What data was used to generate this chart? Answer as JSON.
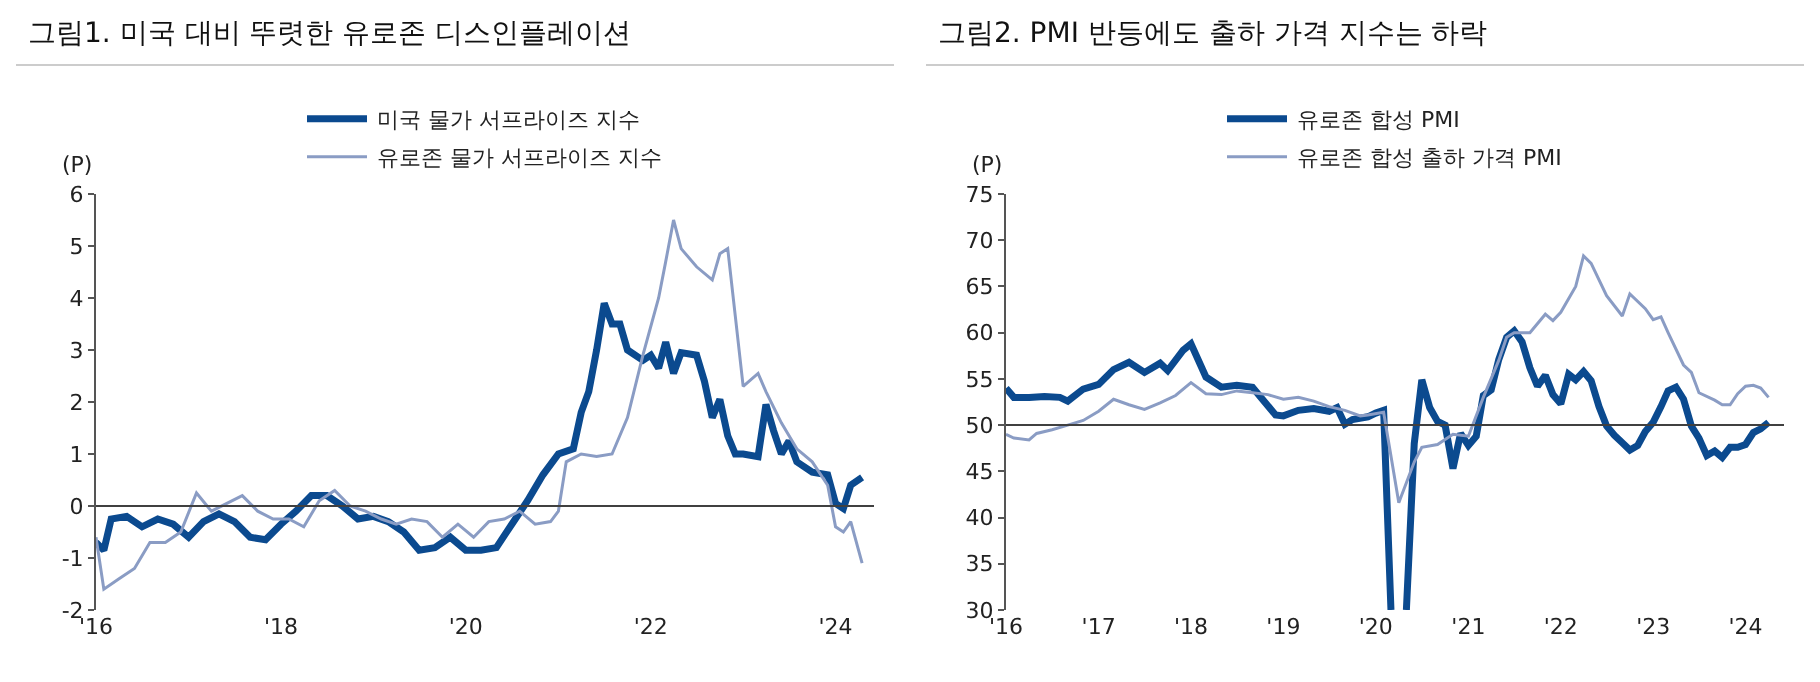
{
  "chart_data": [
    {
      "type": "line",
      "title": "그림1. 미국 대비 뚜렷한 유로존 디스인플레이션",
      "ylabel": "(P)",
      "legend": "top",
      "grid": false,
      "xlim": [
        "2016-01-01",
        "2024-06-01"
      ],
      "xticks": [
        {
          "value": "2016-01-01",
          "label": "'16"
        },
        {
          "value": "2018-01-01",
          "label": "'18"
        },
        {
          "value": "2020-01-01",
          "label": "'20"
        },
        {
          "value": "2022-01-01",
          "label": "'22"
        },
        {
          "value": "2024-01-01",
          "label": "'24"
        }
      ],
      "ylim": [
        -2,
        6
      ],
      "yticks": [
        -2,
        -1,
        0,
        1,
        2,
        3,
        4,
        5,
        6
      ],
      "ref_lines": [
        {
          "axis": "y",
          "value": 0,
          "color": "#404040"
        }
      ],
      "series": [
        {
          "name": "미국 물가 서프라이즈 지수",
          "color": "#0b4a8f",
          "x": [
            "2016-01",
            "2016-02",
            "2016-03",
            "2016-05",
            "2016-07",
            "2016-09",
            "2016-11",
            "2017-01",
            "2017-03",
            "2017-05",
            "2017-07",
            "2017-09",
            "2017-11",
            "2018-01",
            "2018-03",
            "2018-05",
            "2018-07",
            "2018-09",
            "2018-11",
            "2019-01",
            "2019-03",
            "2019-05",
            "2019-07",
            "2019-09",
            "2019-11",
            "2020-01",
            "2020-03",
            "2020-05",
            "2020-07",
            "2020-09",
            "2020-11",
            "2021-01",
            "2021-03",
            "2021-04",
            "2021-05",
            "2021-06",
            "2021-07",
            "2021-08",
            "2021-09",
            "2021-10",
            "2021-12",
            "2022-01",
            "2022-02",
            "2022-03",
            "2022-04",
            "2022-05",
            "2022-07",
            "2022-08",
            "2022-09",
            "2022-10",
            "2022-11",
            "2022-12",
            "2023-01",
            "2023-03",
            "2023-04",
            "2023-05",
            "2023-06",
            "2023-07",
            "2023-08",
            "2023-10",
            "2023-12",
            "2024-01",
            "2024-02",
            "2024-03",
            "2024-04-15"
          ],
          "values": [
            -0.7,
            -0.85,
            -0.25,
            -0.2,
            -0.4,
            -0.25,
            -0.35,
            -0.6,
            -0.3,
            -0.15,
            -0.3,
            -0.6,
            -0.65,
            -0.35,
            -0.1,
            0.2,
            0.2,
            0.0,
            -0.25,
            -0.2,
            -0.3,
            -0.5,
            -0.85,
            -0.8,
            -0.6,
            -0.85,
            -0.85,
            -0.8,
            -0.35,
            0.1,
            0.6,
            1.0,
            1.1,
            1.8,
            2.2,
            3.0,
            3.9,
            3.5,
            3.5,
            3.0,
            2.8,
            2.9,
            2.65,
            3.15,
            2.55,
            2.95,
            2.9,
            2.4,
            1.7,
            2.05,
            1.35,
            1.0,
            1.0,
            0.95,
            1.95,
            1.45,
            1.0,
            1.25,
            0.85,
            0.65,
            0.6,
            0.05,
            -0.05,
            0.4,
            0.55
          ]
        },
        {
          "name": "유로존 물가 서프라이즈 지수",
          "color": "#8a9cc4",
          "x": [
            "2016-01",
            "2016-02",
            "2016-04",
            "2016-06",
            "2016-08",
            "2016-10",
            "2016-12",
            "2017-02",
            "2017-04",
            "2017-06",
            "2017-08",
            "2017-10",
            "2017-12",
            "2018-02",
            "2018-04",
            "2018-06",
            "2018-08",
            "2018-10",
            "2018-12",
            "2019-02",
            "2019-04",
            "2019-06",
            "2019-08",
            "2019-10",
            "2019-12",
            "2020-02",
            "2020-04",
            "2020-06",
            "2020-08",
            "2020-10",
            "2020-12",
            "2021-01",
            "2021-02",
            "2021-04",
            "2021-06",
            "2021-08",
            "2021-10",
            "2021-12",
            "2022-02",
            "2022-03",
            "2022-04",
            "2022-05",
            "2022-07",
            "2022-09",
            "2022-10",
            "2022-11",
            "2022-12",
            "2023-01",
            "2023-03",
            "2023-04",
            "2023-06",
            "2023-08",
            "2023-10",
            "2023-12",
            "2024-01",
            "2024-02",
            "2024-03",
            "2024-04-15"
          ],
          "values": [
            -0.6,
            -1.6,
            -1.4,
            -1.2,
            -0.7,
            -0.7,
            -0.5,
            0.25,
            -0.1,
            0.05,
            0.2,
            -0.1,
            -0.25,
            -0.25,
            -0.4,
            0.1,
            0.3,
            0.0,
            -0.1,
            -0.25,
            -0.35,
            -0.25,
            -0.3,
            -0.6,
            -0.35,
            -0.6,
            -0.3,
            -0.25,
            -0.1,
            -0.35,
            -0.3,
            -0.1,
            0.85,
            1.0,
            0.95,
            1.0,
            1.7,
            2.9,
            4.0,
            4.7,
            5.5,
            4.95,
            4.6,
            4.35,
            4.85,
            4.95,
            3.65,
            2.3,
            2.55,
            2.2,
            1.6,
            1.1,
            0.85,
            0.4,
            -0.4,
            -0.5,
            -0.3,
            -1.1
          ]
        }
      ]
    },
    {
      "type": "line",
      "title": "그림2. PMI 반등에도 출하 가격 지수는 하락",
      "ylabel": "(P)",
      "legend": "top",
      "grid": false,
      "xlim": [
        "2016-01-01",
        "2024-06-01"
      ],
      "xticks": [
        {
          "value": "2016-01-01",
          "label": "'16"
        },
        {
          "value": "2017-01-01",
          "label": "'17"
        },
        {
          "value": "2018-01-01",
          "label": "'18"
        },
        {
          "value": "2019-01-01",
          "label": "'19"
        },
        {
          "value": "2020-01-01",
          "label": "'20"
        },
        {
          "value": "2021-01-01",
          "label": "'21"
        },
        {
          "value": "2022-01-01",
          "label": "'22"
        },
        {
          "value": "2023-01-01",
          "label": "'23"
        },
        {
          "value": "2024-01-01",
          "label": "'24"
        }
      ],
      "ylim": [
        30,
        75
      ],
      "yticks": [
        30,
        35,
        40,
        45,
        50,
        55,
        60,
        65,
        70,
        75
      ],
      "ref_lines": [
        {
          "axis": "y",
          "value": 50,
          "color": "#404040"
        }
      ],
      "series": [
        {
          "name": "유로존 합성 PMI",
          "color": "#0b4a8f",
          "x": [
            "2016-01",
            "2016-02",
            "2016-04",
            "2016-06",
            "2016-08",
            "2016-09",
            "2016-11",
            "2017-01",
            "2017-03",
            "2017-05",
            "2017-07",
            "2017-09",
            "2017-10",
            "2017-12",
            "2018-01",
            "2018-03",
            "2018-05",
            "2018-07",
            "2018-09",
            "2018-10",
            "2018-12",
            "2019-01",
            "2019-03",
            "2019-05",
            "2019-07",
            "2019-08",
            "2019-09",
            "2019-10",
            "2019-12",
            "2020-01",
            "2020-02",
            "2020-03",
            "2020-04",
            "2020-05",
            "2020-06",
            "2020-07",
            "2020-08",
            "2020-09",
            "2020-10",
            "2020-11",
            "2020-12",
            "2021-01",
            "2021-02",
            "2021-03",
            "2021-04",
            "2021-05",
            "2021-06",
            "2021-07",
            "2021-08",
            "2021-09",
            "2021-10",
            "2021-11",
            "2021-12",
            "2022-01",
            "2022-02",
            "2022-03",
            "2022-04",
            "2022-05",
            "2022-06",
            "2022-07",
            "2022-08",
            "2022-09",
            "2022-10",
            "2022-11",
            "2022-12",
            "2023-01",
            "2023-02",
            "2023-03",
            "2023-04",
            "2023-05",
            "2023-06",
            "2023-07",
            "2023-08",
            "2023-09",
            "2023-10",
            "2023-11",
            "2023-12",
            "2024-01",
            "2024-02",
            "2024-03",
            "2024-04"
          ],
          "values": [
            54,
            53,
            53,
            53.1,
            53,
            52.6,
            53.9,
            54.4,
            56,
            56.8,
            55.7,
            56.7,
            55.9,
            58.1,
            58.8,
            55.2,
            54.1,
            54.3,
            54.1,
            53.1,
            51.1,
            51,
            51.6,
            51.8,
            51.5,
            51.9,
            50.1,
            50.6,
            50.9,
            51.3,
            51.6,
            30,
            null,
            30,
            48,
            54.9,
            51.9,
            50.4,
            50,
            45.3,
            49.1,
            47.8,
            48.8,
            53.2,
            53.8,
            57.1,
            59.5,
            60.2,
            59,
            56.2,
            54.2,
            55.4,
            53.3,
            52.3,
            55.5,
            54.9,
            55.8,
            54.8,
            52,
            49.9,
            48.9,
            48.1,
            47.3,
            47.8,
            49.3,
            50.3,
            52,
            53.7,
            54.1,
            52.8,
            49.9,
            48.6,
            46.7,
            47.2,
            46.5,
            47.6,
            47.6,
            47.9,
            49.2,
            49.6,
            50.3
          ]
        },
        {
          "name": "유로존 합성 출하 가격 PMI",
          "color": "#8a9cc4",
          "x": [
            "2016-01",
            "2016-02",
            "2016-04",
            "2016-05",
            "2016-07",
            "2016-09",
            "2016-11",
            "2017-01",
            "2017-03",
            "2017-05",
            "2017-07",
            "2017-09",
            "2017-11",
            "2018-01",
            "2018-03",
            "2018-05",
            "2018-07",
            "2018-09",
            "2018-11",
            "2019-01",
            "2019-03",
            "2019-05",
            "2019-07",
            "2019-09",
            "2019-11",
            "2019-12",
            "2020-02",
            "2020-04",
            "2020-06",
            "2020-07",
            "2020-09",
            "2020-11",
            "2021-01",
            "2021-03",
            "2021-05",
            "2021-06",
            "2021-07",
            "2021-09",
            "2021-11",
            "2021-12",
            "2022-01",
            "2022-03",
            "2022-04",
            "2022-05",
            "2022-07",
            "2022-09",
            "2022-10",
            "2022-12",
            "2023-01",
            "2023-02",
            "2023-03",
            "2023-05",
            "2023-06",
            "2023-07",
            "2023-09",
            "2023-10",
            "2023-11",
            "2023-12",
            "2024-01",
            "2024-02",
            "2024-03",
            "2024-04"
          ],
          "values": [
            49,
            48.6,
            48.4,
            49.1,
            49.5,
            50,
            50.5,
            51.5,
            52.8,
            52.2,
            51.7,
            52.4,
            53.2,
            54.6,
            53.4,
            53.3,
            53.7,
            53.5,
            53.3,
            52.8,
            53,
            52.6,
            52,
            51.6,
            51,
            51.1,
            51.4,
            41.6,
            46,
            47.6,
            47.9,
            49,
            48.8,
            53,
            57,
            59.5,
            60,
            60,
            62,
            61.3,
            62.2,
            65,
            68.3,
            67.5,
            64,
            61.8,
            64.2,
            62.6,
            61.4,
            61.7,
            60,
            56.5,
            55.7,
            53.5,
            52.7,
            52.2,
            52.2,
            53.4,
            54.2,
            54.3,
            54,
            53
          ]
        }
      ]
    }
  ]
}
